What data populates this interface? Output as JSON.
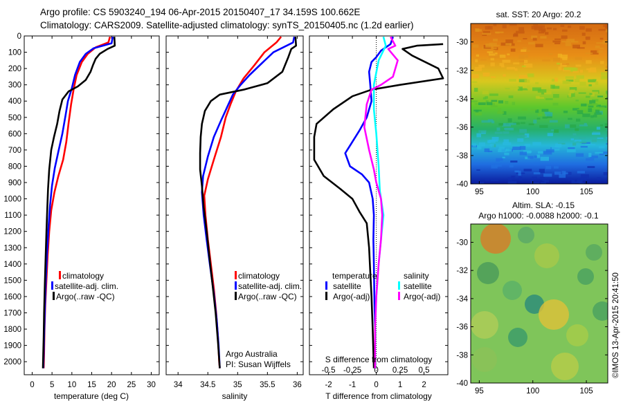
{
  "header": {
    "line1": "Argo profile: CS 5903240_194 06-Apr-2015 20150407_17 34.159S 100.662E",
    "line2": "Climatology: CARS2009. Satellite-adjusted climatology: synTS_20150405.nc (1.2d earlier)"
  },
  "side_text": "©IMOS 13-Apr-2015 20:41:50",
  "colors": {
    "climatology": "#ff0000",
    "satellite": "#0000ff",
    "argo": "#000000",
    "sat_salinity": "#00ffff",
    "argo_salinity": "#ff00ff"
  },
  "chart_data": [
    {
      "id": "temperature",
      "type": "line",
      "xlabel": "temperature (deg C)",
      "ylabel": "",
      "xlim": [
        -2,
        32
      ],
      "ylim": [
        2080,
        0
      ],
      "xticks": [
        "0",
        "5",
        "10",
        "15",
        "20",
        "25",
        "30"
      ],
      "yticks": [
        "0",
        "100",
        "200",
        "300",
        "400",
        "500",
        "600",
        "700",
        "800",
        "900",
        "1000",
        "1100",
        "1200",
        "1300",
        "1400",
        "1500",
        "1600",
        "1700",
        "1800",
        "1900",
        "2000"
      ],
      "legend": [
        "climatology",
        "satellite-adj. clim.",
        "Argo(..raw -QC)"
      ],
      "series": [
        {
          "name": "climatology",
          "color": "#ff0000",
          "points": [
            [
              19.6,
              5
            ],
            [
              19.2,
              40
            ],
            [
              16,
              70
            ],
            [
              14,
              110
            ],
            [
              12.5,
              160
            ],
            [
              11.2,
              240
            ],
            [
              10.5,
              320
            ],
            [
              9.8,
              420
            ],
            [
              9.2,
              530
            ],
            [
              8.6,
              650
            ],
            [
              7.8,
              760
            ],
            [
              6.6,
              860
            ],
            [
              5.6,
              960
            ],
            [
              4.8,
              1070
            ],
            [
              4.3,
              1200
            ],
            [
              3.9,
              1350
            ],
            [
              3.6,
              1500
            ],
            [
              3.3,
              1650
            ],
            [
              3.1,
              1800
            ],
            [
              3,
              1950
            ],
            [
              2.9,
              2040
            ]
          ]
        },
        {
          "name": "satellite-adj. clim.",
          "color": "#0000ff",
          "points": [
            [
              20.3,
              5
            ],
            [
              20,
              45
            ],
            [
              15.5,
              75
            ],
            [
              13.5,
              110
            ],
            [
              12,
              160
            ],
            [
              10.8,
              240
            ],
            [
              10,
              320
            ],
            [
              9,
              400
            ],
            [
              8.4,
              490
            ],
            [
              7.6,
              600
            ],
            [
              6.6,
              710
            ],
            [
              5.7,
              810
            ],
            [
              5,
              920
            ],
            [
              4.5,
              1040
            ],
            [
              4.1,
              1180
            ],
            [
              3.7,
              1350
            ],
            [
              3.4,
              1520
            ],
            [
              3.2,
              1680
            ],
            [
              3,
              1850
            ],
            [
              2.9,
              1950
            ],
            [
              2.8,
              2040
            ]
          ]
        },
        {
          "name": "Argo(..raw -QC)",
          "color": "#000000",
          "points": [
            [
              20.7,
              5
            ],
            [
              20.8,
              60
            ],
            [
              19,
              80
            ],
            [
              17,
              110
            ],
            [
              16,
              140
            ],
            [
              15.3,
              180
            ],
            [
              14.7,
              220
            ],
            [
              13.5,
              270
            ],
            [
              11.5,
              310
            ],
            [
              9.2,
              340
            ],
            [
              7.6,
              390
            ],
            [
              6.9,
              460
            ],
            [
              6.3,
              540
            ],
            [
              5.5,
              620
            ],
            [
              4.8,
              700
            ],
            [
              4.3,
              820
            ],
            [
              4,
              940
            ],
            [
              3.8,
              1060
            ],
            [
              3.6,
              1200
            ],
            [
              3.4,
              1350
            ],
            [
              3.2,
              1520
            ],
            [
              3,
              1700
            ],
            [
              2.9,
              1850
            ],
            [
              2.8,
              1950
            ],
            [
              2.7,
              2040
            ]
          ]
        }
      ]
    },
    {
      "id": "salinity",
      "type": "line",
      "xlabel": "salinity",
      "ylabel": "",
      "xlim": [
        33.8,
        36.1
      ],
      "ylim": [
        2080,
        0
      ],
      "xticks": [
        "34",
        "34.5",
        "35",
        "35.5",
        "36"
      ],
      "legend": [
        "climatology",
        "satellite-adj. clim.",
        "Argo(..raw -QC)"
      ],
      "annotations": [
        "Argo Australia",
        "PI: Susan Wijffels"
      ],
      "series": [
        {
          "name": "climatology",
          "color": "#ff0000",
          "points": [
            [
              35.73,
              5
            ],
            [
              35.65,
              40
            ],
            [
              35.45,
              100
            ],
            [
              35.28,
              180
            ],
            [
              35.1,
              260
            ],
            [
              34.97,
              340
            ],
            [
              34.88,
              420
            ],
            [
              34.8,
              500
            ],
            [
              34.72,
              620
            ],
            [
              34.6,
              760
            ],
            [
              34.5,
              880
            ],
            [
              34.44,
              980
            ],
            [
              34.46,
              1100
            ],
            [
              34.5,
              1250
            ],
            [
              34.55,
              1400
            ],
            [
              34.6,
              1550
            ],
            [
              34.64,
              1700
            ],
            [
              34.67,
              1850
            ],
            [
              34.69,
              2000
            ],
            [
              34.7,
              2040
            ]
          ]
        },
        {
          "name": "satellite-adj. clim.",
          "color": "#0000ff",
          "points": [
            [
              35.95,
              5
            ],
            [
              35.93,
              40
            ],
            [
              35.6,
              100
            ],
            [
              35.4,
              170
            ],
            [
              35.2,
              240
            ],
            [
              35.05,
              300
            ],
            [
              34.92,
              360
            ],
            [
              34.82,
              440
            ],
            [
              34.72,
              520
            ],
            [
              34.6,
              620
            ],
            [
              34.5,
              740
            ],
            [
              34.42,
              860
            ],
            [
              34.4,
              960
            ],
            [
              34.43,
              1100
            ],
            [
              34.48,
              1250
            ],
            [
              34.54,
              1420
            ],
            [
              34.6,
              1580
            ],
            [
              34.65,
              1750
            ],
            [
              34.68,
              1900
            ],
            [
              34.7,
              2040
            ]
          ]
        },
        {
          "name": "Argo(..raw -QC)",
          "color": "#000000",
          "points": [
            [
              35.97,
              5
            ],
            [
              35.98,
              60
            ],
            [
              35.9,
              80
            ],
            [
              35.85,
              130
            ],
            [
              35.75,
              220
            ],
            [
              35.5,
              290
            ],
            [
              35.1,
              330
            ],
            [
              34.7,
              360
            ],
            [
              34.55,
              400
            ],
            [
              34.45,
              460
            ],
            [
              34.4,
              540
            ],
            [
              34.38,
              620
            ],
            [
              34.37,
              720
            ],
            [
              34.37,
              820
            ],
            [
              34.4,
              920
            ],
            [
              34.43,
              1050
            ],
            [
              34.48,
              1200
            ],
            [
              34.53,
              1370
            ],
            [
              34.58,
              1530
            ],
            [
              34.63,
              1700
            ],
            [
              34.67,
              1880
            ],
            [
              34.7,
              2040
            ]
          ]
        }
      ]
    },
    {
      "id": "difference",
      "type": "line",
      "xlabel": "T difference from climatology",
      "top_xlabel": "S difference from climatology",
      "xlim": [
        -2.8,
        3.0
      ],
      "ylim": [
        2080,
        0
      ],
      "xticks": [
        "-2",
        "-1",
        "0",
        "1",
        "2"
      ],
      "top_xticks": [
        "-0.5",
        "-0.25",
        "0",
        "0.25",
        "0.5"
      ],
      "legend_title_t": "temperature",
      "legend_title_s": "salinity",
      "legend": [
        "satellite",
        "Argo(-adj)",
        "satellite",
        "Argo(-adj)"
      ],
      "series": [
        {
          "name": "satellite",
          "color": "#0000ff",
          "points": [
            [
              0.7,
              5
            ],
            [
              0.6,
              50
            ],
            [
              0.2,
              90
            ],
            [
              0,
              130
            ],
            [
              -0.2,
              160
            ],
            [
              -0.3,
              220
            ],
            [
              -0.25,
              300
            ],
            [
              -0.2,
              400
            ],
            [
              -0.4,
              500
            ],
            [
              -0.7,
              580
            ],
            [
              -1,
              650
            ],
            [
              -1.3,
              720
            ],
            [
              -1.1,
              800
            ],
            [
              -0.6,
              850
            ],
            [
              -0.3,
              900
            ],
            [
              -0.15,
              1000
            ],
            [
              -0.1,
              1100
            ],
            [
              -0.12,
              1250
            ],
            [
              -0.1,
              1400
            ],
            [
              -0.08,
              1600
            ],
            [
              -0.05,
              1800
            ],
            [
              -0.05,
              1950
            ],
            [
              -0.05,
              2040
            ]
          ]
        },
        {
          "name": "Argo(-adj)",
          "color": "#000000",
          "points": [
            [
              2.8,
              50
            ],
            [
              1.7,
              60
            ],
            [
              1.1,
              80
            ],
            [
              1.5,
              120
            ],
            [
              2.6,
              200
            ],
            [
              2.8,
              260
            ],
            [
              1,
              300
            ],
            [
              -0.2,
              330
            ],
            [
              -1,
              370
            ],
            [
              -1.8,
              450
            ],
            [
              -2.5,
              540
            ],
            [
              -2.6,
              620
            ],
            [
              -2.6,
              760
            ],
            [
              -2.2,
              860
            ],
            [
              -1.5,
              940
            ],
            [
              -1,
              1000
            ],
            [
              -0.7,
              1080
            ],
            [
              -0.4,
              1150
            ],
            [
              -0.3,
              1300
            ],
            [
              -0.25,
              1450
            ],
            [
              -0.2,
              1600
            ],
            [
              -0.15,
              1800
            ],
            [
              -0.1,
              2040
            ]
          ]
        },
        {
          "name": "sat salinity",
          "color": "#00ffff",
          "points": [
            [
              0.3,
              5
            ],
            [
              0.4,
              60
            ],
            [
              0.1,
              150
            ],
            [
              -0.1,
              300
            ],
            [
              -0.1,
              450
            ],
            [
              0,
              600
            ],
            [
              0.1,
              800
            ],
            [
              0.15,
              950
            ],
            [
              0.3,
              1100
            ],
            [
              0.2,
              1250
            ],
            [
              0.1,
              1400
            ],
            [
              0,
              1600
            ],
            [
              -0.05,
              1800
            ],
            [
              -0.05,
              2040
            ]
          ]
        },
        {
          "name": "Argo salinity",
          "color": "#ff00ff",
          "points": [
            [
              0.6,
              5
            ],
            [
              0.8,
              60
            ],
            [
              0.5,
              80
            ],
            [
              0.9,
              150
            ],
            [
              0.7,
              250
            ],
            [
              0.2,
              300
            ],
            [
              -0.2,
              330
            ],
            [
              -0.4,
              420
            ],
            [
              -0.5,
              560
            ],
            [
              -0.3,
              700
            ],
            [
              -0.1,
              820
            ],
            [
              0,
              900
            ],
            [
              0.2,
              1000
            ],
            [
              0.25,
              1100
            ],
            [
              0.2,
              1250
            ],
            [
              0.1,
              1400
            ],
            [
              0,
              1600
            ],
            [
              -0.05,
              1800
            ],
            [
              -0.05,
              2040
            ]
          ]
        }
      ]
    },
    {
      "id": "sst_map",
      "type": "heatmap",
      "title": "sat. SST: 20  Argo: 20.2",
      "xticks": [
        "95",
        "100",
        "105"
      ],
      "yticks": [
        "-30",
        "-32",
        "-34",
        "-36",
        "-38",
        "-40"
      ],
      "xlim": [
        94.2,
        107
      ],
      "ylim": [
        -40,
        -28.7
      ]
    },
    {
      "id": "sla_map",
      "type": "heatmap",
      "title": "Altim. SLA: -0.15",
      "subtitle": "Argo h1000: -0.0088 h2000: -0.1",
      "xticks": [
        "95",
        "100",
        "105"
      ],
      "yticks": [
        "-30",
        "-32",
        "-34",
        "-36",
        "-38",
        "-40"
      ],
      "xlim": [
        94.2,
        107
      ],
      "ylim": [
        -40,
        -28.7
      ]
    }
  ]
}
